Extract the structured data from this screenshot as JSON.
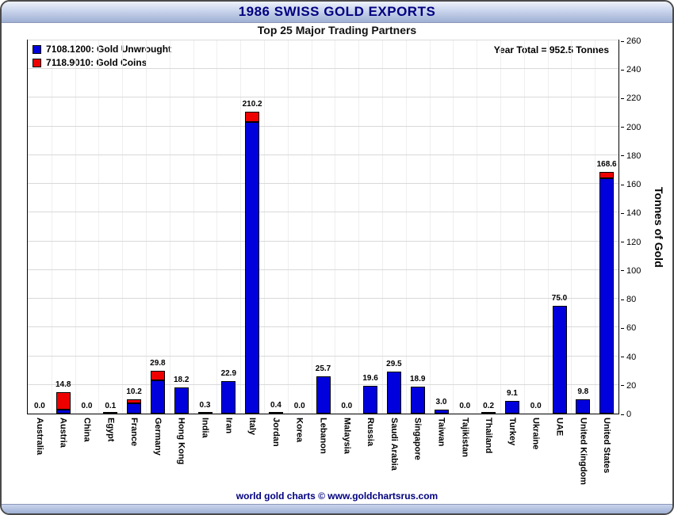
{
  "header": {
    "title": "1986 SWISS GOLD EXPORTS",
    "subtitle": "Top 25 Major Trading Partners"
  },
  "annotations": {
    "year_total": "Year Total = 952.5 Tonnes"
  },
  "footer": {
    "text": "world gold charts © www.goldchartsrus.com"
  },
  "chart_data": {
    "type": "bar",
    "stacked": true,
    "title": "1986 Swiss Gold Exports — Top 25 Major Trading Partners",
    "xlabel": "",
    "ylabel": "Tonnes of Gold",
    "ylim": [
      0,
      260
    ],
    "ytick_step": 20,
    "grid": true,
    "legend_position": "top-left",
    "categories": [
      "Australia",
      "Austria",
      "China",
      "Egypt",
      "France",
      "Germany",
      "Hong Kong",
      "India",
      "Iran",
      "Italy",
      "Jordan",
      "Korea",
      "Lebanon",
      "Malaysia",
      "Russia",
      "Saudi Arabia",
      "Singapore",
      "Taiwan",
      "Tajikistan",
      "Thailand",
      "Turkey",
      "Ukraine",
      "UAE",
      "United Kingdom",
      "United States"
    ],
    "series": [
      {
        "name": "7108.1200: Gold Unwrought",
        "color": "#0000dd",
        "values": [
          0.0,
          3.0,
          0.0,
          0.1,
          7.2,
          23.0,
          18.2,
          0.3,
          22.9,
          203.0,
          0.4,
          0.0,
          25.7,
          0.0,
          19.6,
          29.5,
          18.9,
          3.0,
          0.0,
          0.2,
          9.1,
          0.0,
          75.0,
          9.8,
          164.0
        ]
      },
      {
        "name": "7118.9010: Gold Coins",
        "color": "#ee0000",
        "values": [
          0.0,
          11.8,
          0.0,
          0.0,
          3.0,
          6.8,
          0.0,
          0.0,
          0.0,
          7.2,
          0.0,
          0.0,
          0.0,
          0.0,
          0.0,
          0.0,
          0.0,
          0.0,
          0.0,
          0.0,
          0.0,
          0.0,
          0.0,
          0.0,
          4.6
        ]
      }
    ],
    "totals": [
      0.0,
      14.8,
      0.0,
      0.1,
      10.2,
      29.8,
      18.2,
      0.3,
      22.9,
      210.2,
      0.4,
      0.0,
      25.7,
      0.0,
      19.6,
      29.5,
      18.9,
      3.0,
      0.0,
      0.2,
      9.1,
      0.0,
      75.0,
      9.8,
      168.6
    ],
    "total_labels": [
      "0.0",
      "14.8",
      "0.0",
      "0.1",
      "10.2",
      "29.8",
      "18.2",
      "0.3",
      "22.9",
      "210.2",
      "0.4",
      "0.0",
      "25.7",
      "0.0",
      "19.6",
      "29.5",
      "18.9",
      "3.0",
      "0.0",
      "0.2",
      "9.1",
      "0.0",
      "75.0",
      "9.8",
      "168.6"
    ]
  }
}
